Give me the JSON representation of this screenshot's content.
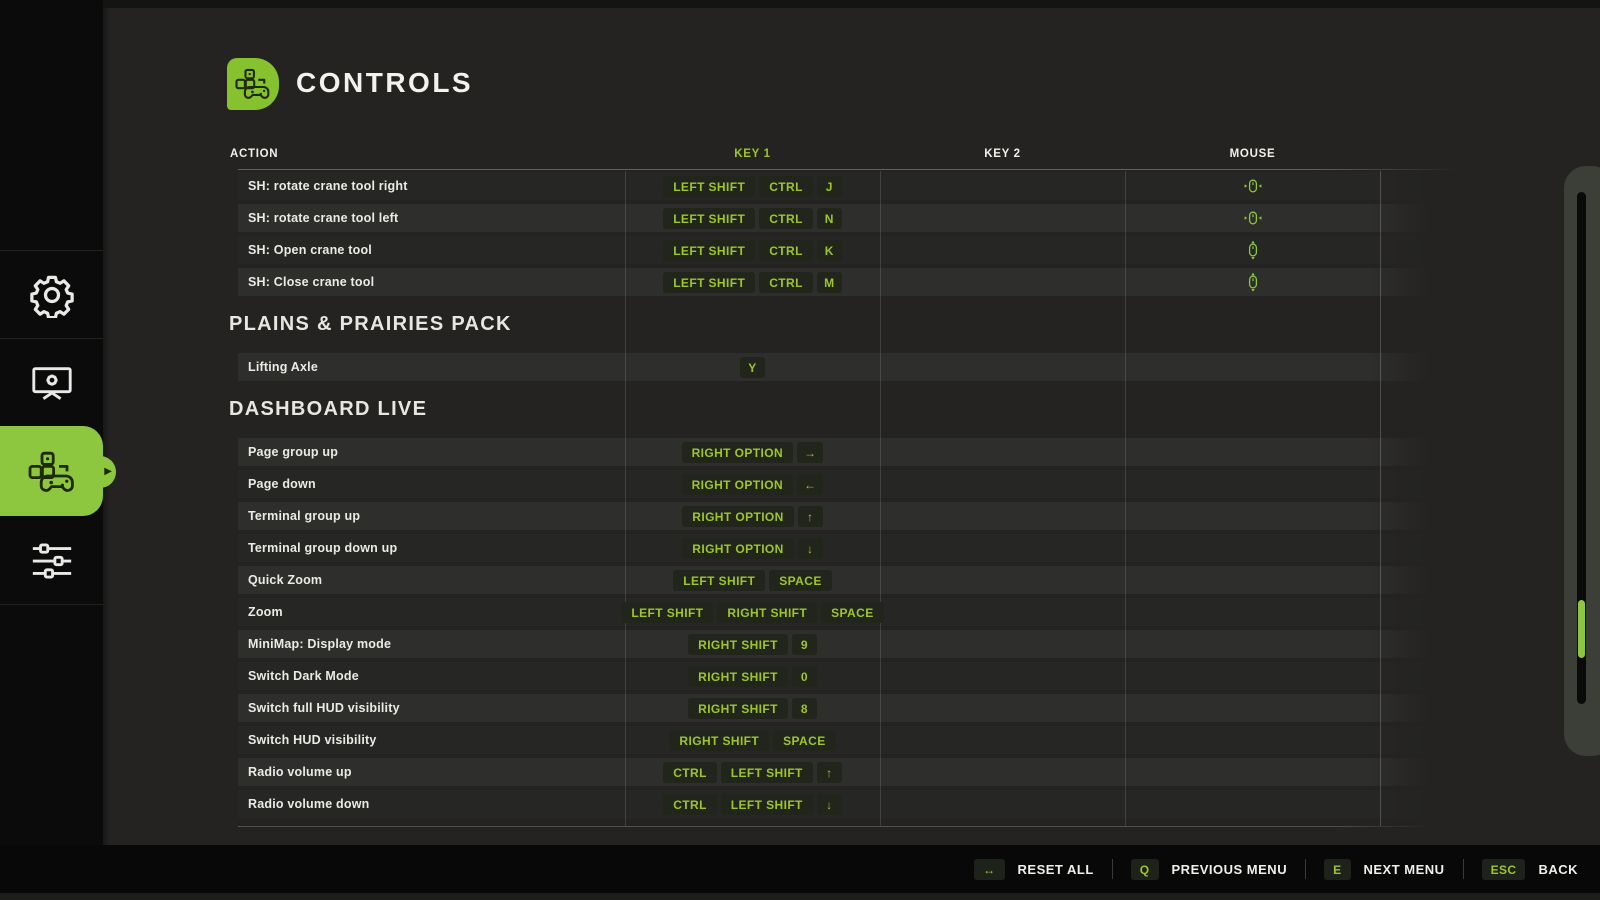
{
  "colors": {
    "accent_green": "#8dc63f",
    "key_text_green": "#9dc62d",
    "key_badge_bg": "#21251b",
    "page_bg": "#242322",
    "sidebar_bg": "#0b0b0b",
    "row_dark": "#262624",
    "row_light": "#2e2e2c"
  },
  "header": {
    "title": "CONTROLS",
    "icon": "controls-gamepad-icon"
  },
  "sidebar": {
    "items": [
      {
        "name": "general-settings",
        "icon": "gear-icon",
        "active": false
      },
      {
        "name": "display-settings",
        "icon": "monitor-gear-icon",
        "active": false
      },
      {
        "name": "controls",
        "icon": "gamepad-keys-icon",
        "active": true
      },
      {
        "name": "advanced-settings",
        "icon": "sliders-icon",
        "active": false
      }
    ]
  },
  "table": {
    "columns": [
      "ACTION",
      "KEY 1",
      "KEY 2",
      "MOUSE"
    ],
    "sections": [
      {
        "title": "",
        "stripe_start": "dark",
        "rows": [
          {
            "action": "SH: rotate crane tool right",
            "key1": [
              "LEFT SHIFT",
              "CTRL",
              "J"
            ],
            "key2": [],
            "mouse": "mouse-scroll-horizontal-icon"
          },
          {
            "action": "SH: rotate crane tool left",
            "key1": [
              "LEFT SHIFT",
              "CTRL",
              "N"
            ],
            "key2": [],
            "mouse": "mouse-scroll-horizontal-icon"
          },
          {
            "action": "SH: Open crane tool",
            "key1": [
              "LEFT SHIFT",
              "CTRL",
              "K"
            ],
            "key2": [],
            "mouse": "mouse-scroll-vertical-icon"
          },
          {
            "action": "SH: Close crane tool",
            "key1": [
              "LEFT SHIFT",
              "CTRL",
              "M"
            ],
            "key2": [],
            "mouse": "mouse-scroll-vertical-icon"
          }
        ]
      },
      {
        "title": "PLAINS & PRAIRIES PACK",
        "stripe_start": "light",
        "rows": [
          {
            "action": "Lifting Axle",
            "key1": [
              "Y"
            ],
            "key2": [],
            "mouse": ""
          }
        ]
      },
      {
        "title": "DASHBOARD LIVE",
        "stripe_start": "light",
        "rows": [
          {
            "action": "Page group up",
            "key1": [
              "RIGHT OPTION",
              "→"
            ],
            "key2": [],
            "mouse": ""
          },
          {
            "action": "Page down",
            "key1": [
              "RIGHT OPTION",
              "←"
            ],
            "key2": [],
            "mouse": ""
          },
          {
            "action": "Terminal group up",
            "key1": [
              "RIGHT OPTION",
              "↑"
            ],
            "key2": [],
            "mouse": ""
          },
          {
            "action": "Terminal group down up",
            "key1": [
              "RIGHT OPTION",
              "↓"
            ],
            "key2": [],
            "mouse": ""
          },
          {
            "action": "Quick Zoom",
            "key1": [
              "LEFT SHIFT",
              "SPACE"
            ],
            "key2": [],
            "mouse": ""
          },
          {
            "action": "Zoom",
            "key1": [
              "LEFT SHIFT",
              "RIGHT SHIFT",
              "SPACE"
            ],
            "key2": [],
            "mouse": ""
          },
          {
            "action": "MiniMap: Display mode",
            "key1": [
              "RIGHT SHIFT",
              "9"
            ],
            "key2": [],
            "mouse": ""
          },
          {
            "action": "Switch Dark Mode",
            "key1": [
              "RIGHT SHIFT",
              "0"
            ],
            "key2": [],
            "mouse": ""
          },
          {
            "action": "Switch full HUD visibility",
            "key1": [
              "RIGHT SHIFT",
              "8"
            ],
            "key2": [],
            "mouse": ""
          },
          {
            "action": "Switch HUD visibility",
            "key1": [
              "RIGHT SHIFT",
              "SPACE"
            ],
            "key2": [],
            "mouse": ""
          },
          {
            "action": "Radio volume up",
            "key1": [
              "CTRL",
              "LEFT SHIFT",
              "↑"
            ],
            "key2": [],
            "mouse": ""
          },
          {
            "action": "Radio volume down",
            "key1": [
              "CTRL",
              "LEFT SHIFT",
              "↓"
            ],
            "key2": [],
            "mouse": ""
          }
        ]
      }
    ]
  },
  "footer": {
    "items": [
      {
        "key": "↔",
        "label": "RESET ALL",
        "name": "reset-all"
      },
      {
        "key": "Q",
        "label": "PREVIOUS MENU",
        "name": "previous-menu"
      },
      {
        "key": "E",
        "label": "NEXT MENU",
        "name": "next-menu"
      },
      {
        "key": "ESC",
        "label": "BACK",
        "name": "back"
      }
    ]
  }
}
